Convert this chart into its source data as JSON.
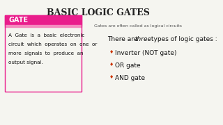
{
  "title": "Basic Logic Gates",
  "subtitle": "Gates are often called as logical circuits",
  "gate_label": "Gate",
  "gate_box_color": "#e91e8c",
  "gate_box_bg": "#f48cbf",
  "gate_text": "A  Gate  is  a  basic  electronic\ncircuit  which  operates  on  one  or\nmore  signals  to  produce  an\noutput signal.",
  "three_types_text": "There are ",
  "three_italic": "three",
  "three_rest": " types of logic gates :",
  "bullets": [
    "Inverter (NOT gate)",
    "OR gate",
    "AND gate"
  ],
  "bg_color": "#f5f5f0",
  "title_color": "#222222",
  "box_border_color": "#e91e8c",
  "text_color": "#111111",
  "subtitle_color": "#555555"
}
